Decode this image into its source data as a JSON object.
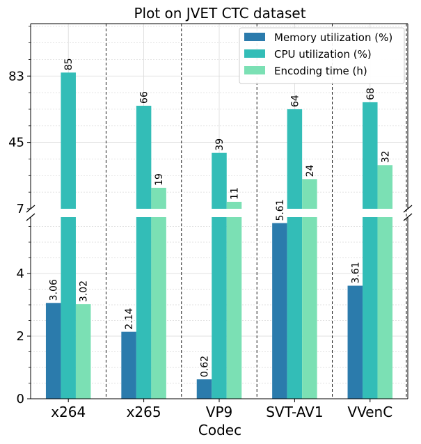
{
  "chart_data": {
    "type": "bar",
    "title": "Plot on JVET CTC dataset",
    "xlabel": "Codec",
    "ylabel": "",
    "categories": [
      "x264",
      "x265",
      "VP9",
      "SVT-AV1",
      "VVenC"
    ],
    "series": [
      {
        "name": "Memory utilization (%)",
        "color": "#2b7bac",
        "values": [
          3.06,
          2.14,
          0.62,
          5.61,
          3.61
        ],
        "labels": [
          "3.06",
          "2.14",
          "0.62",
          "5.61",
          "3.61"
        ]
      },
      {
        "name": "CPU utilization (%)",
        "color": "#33bdb7",
        "values": [
          85,
          66,
          39,
          64,
          68
        ],
        "labels": [
          "85",
          "66",
          "39",
          "64",
          "68"
        ]
      },
      {
        "name": "Encoding time (h)",
        "color": "#7be0b4",
        "values": [
          3.02,
          19,
          11,
          24,
          32
        ],
        "labels": [
          "3.02",
          "19",
          "11",
          "24",
          "32"
        ]
      }
    ],
    "broken_axis": {
      "lower": {
        "ylim": [
          0,
          5.8
        ],
        "ticks": [
          "0",
          "2",
          "4"
        ]
      },
      "upper": {
        "ylim": [
          7,
          113
        ],
        "ticks": [
          "7",
          "45",
          "83"
        ]
      }
    },
    "grid": true,
    "legend_position": "top-right"
  }
}
